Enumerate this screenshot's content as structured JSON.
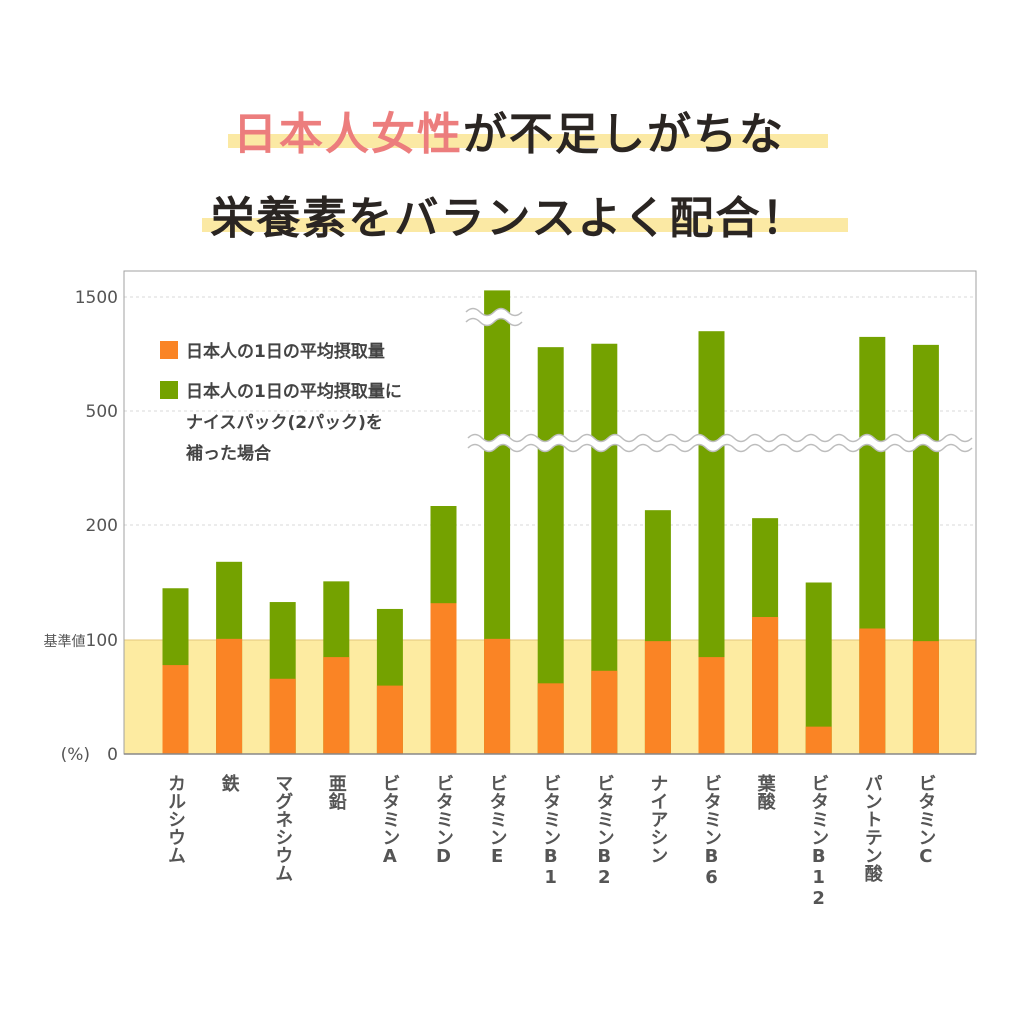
{
  "headline": {
    "line1_accent": "日本人女性",
    "line1_rest": "が不足しがちな",
    "line2": "栄養素をバランスよく配合！"
  },
  "colors": {
    "orange": "#fa8425",
    "green": "#74a200",
    "baseline_band": "#fdeba1",
    "accent": "#ec7d7d",
    "highlight": "#fbe9a4"
  },
  "chart_data": {
    "type": "bar",
    "stacked": true,
    "broken_axis": true,
    "unit_label": "(%)",
    "baseline_label": "基準値",
    "y_ticks": [
      0,
      100,
      200,
      500,
      1500
    ],
    "categories": [
      "カルシウム",
      "鉄",
      "マグネシウム",
      "亜鉛",
      "ビタミンA",
      "ビタミンD",
      "ビタミンE",
      "ビタミンB1",
      "ビタミンB2",
      "ナイアシン",
      "ビタミンB6",
      "葉酸",
      "ビタミンB12",
      "パントテン酸",
      "ビタミンC"
    ],
    "series": [
      {
        "name": "日本人の1日の平均摂取量",
        "color": "#fa8425",
        "values": [
          78,
          101,
          66,
          85,
          60,
          132,
          101,
          62,
          73,
          99,
          85,
          120,
          24,
          110,
          99
        ]
      },
      {
        "name": "日本人の1日の平均摂取量にナイスパック(2パック)を補った場合",
        "color": "#74a200",
        "values": [
          145,
          168,
          133,
          151,
          127,
          250,
          1560,
          1060,
          1090,
          239,
          1200,
          218,
          150,
          1150,
          1080
        ]
      }
    ],
    "legend": {
      "item1": "日本人の1日の平均摂取量",
      "item2_lines": [
        "日本人の1日の平均摂取量に",
        "ナイスパック(2パック)を",
        "補った場合"
      ]
    },
    "grid": true
  }
}
